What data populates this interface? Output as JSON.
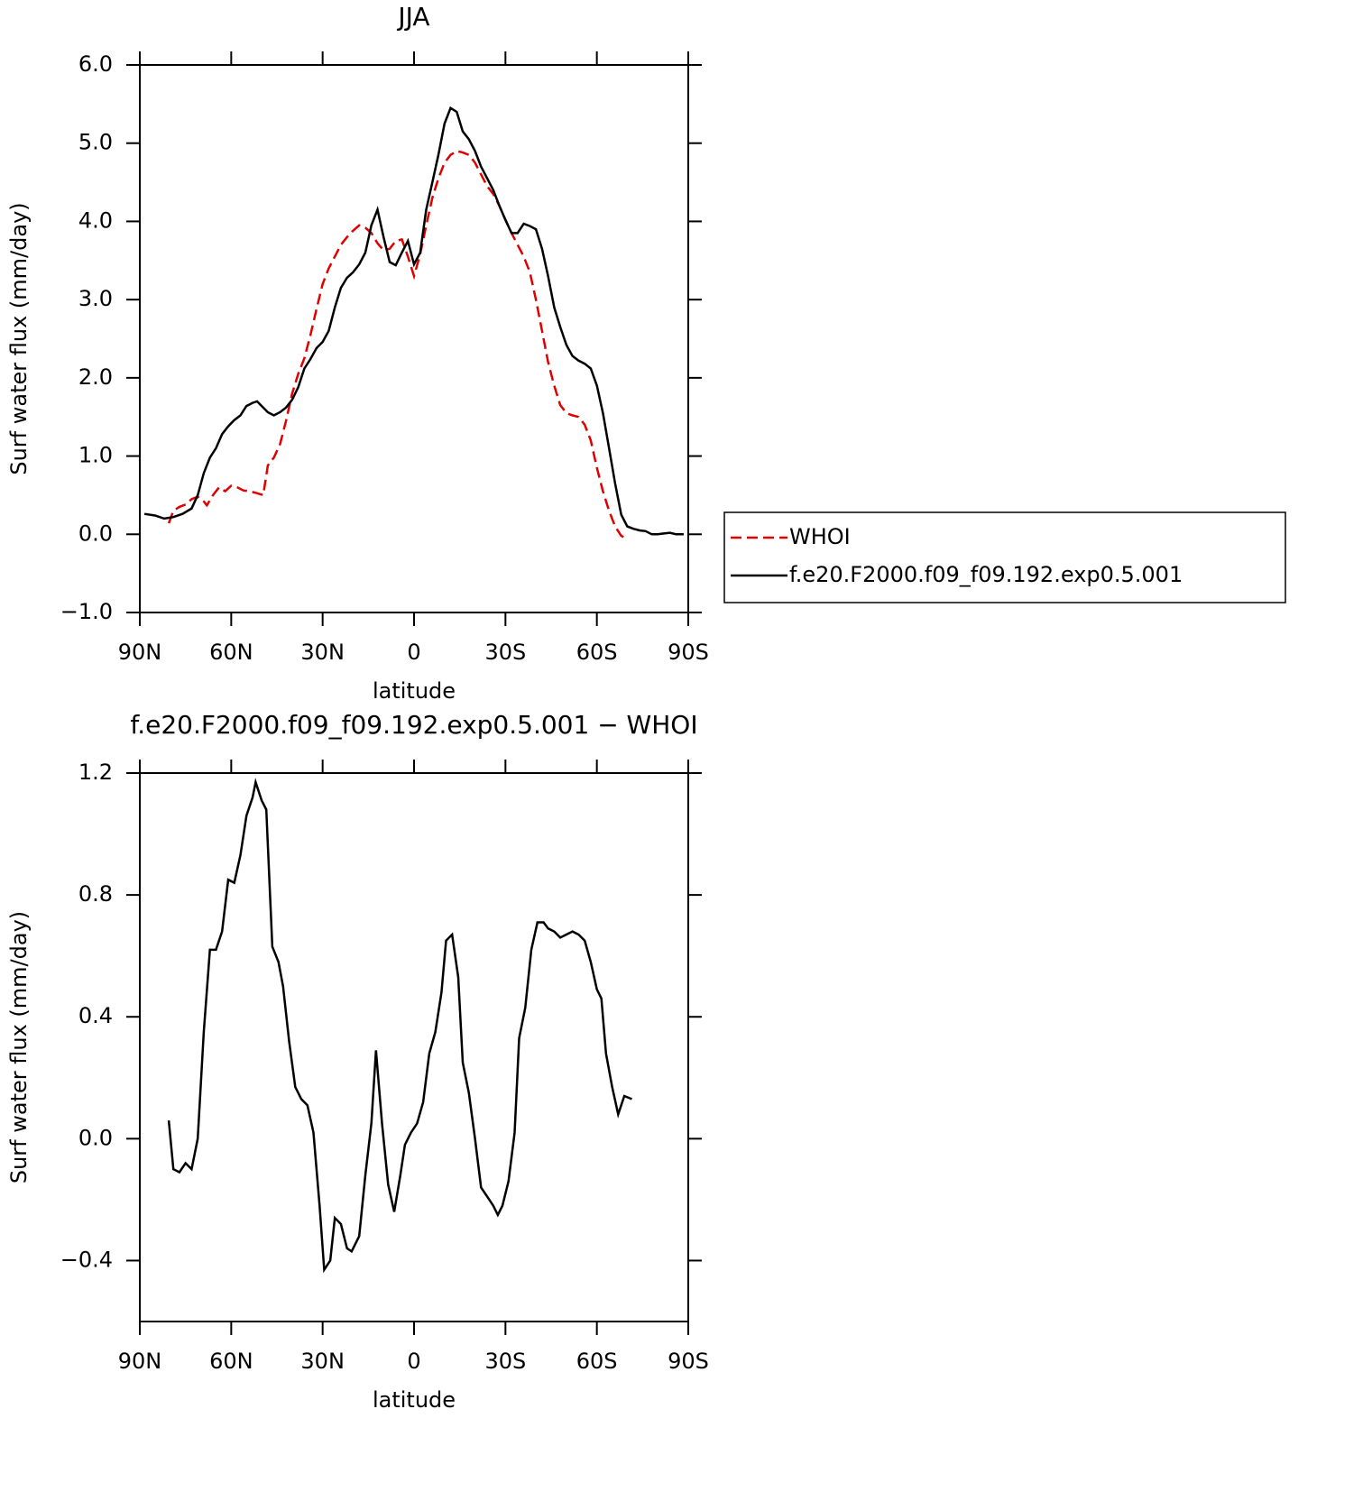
{
  "chart_data": [
    {
      "type": "line",
      "title": "JJA",
      "xlabel": "latitude",
      "ylabel": "Surf water flux (mm/day)",
      "xlim": [
        90,
        -90
      ],
      "ylim": [
        -1,
        6
      ],
      "xticks": [
        {
          "value": 90,
          "label": "90N"
        },
        {
          "value": 60,
          "label": "60N"
        },
        {
          "value": 30,
          "label": "30N"
        },
        0,
        {
          "value": -30,
          "label": "30S"
        },
        {
          "value": -60,
          "label": "60S"
        },
        {
          "value": -90,
          "label": "90S"
        }
      ],
      "yticks": [
        {
          "value": 6,
          "label": "6.0"
        },
        {
          "value": 5,
          "label": "5.0"
        },
        {
          "value": 4,
          "label": "4.0"
        },
        {
          "value": 3,
          "label": "3.0"
        },
        {
          "value": 2,
          "label": "2.0"
        },
        {
          "value": 1,
          "label": "1.0"
        },
        {
          "value": 0,
          "label": "0.0"
        },
        {
          "value": -1,
          "label": "−1.0"
        }
      ],
      "legend": "right",
      "series": [
        {
          "name": "WHOI",
          "color": "#e00000",
          "dash": true,
          "x": [
            80.5,
            79,
            77,
            75,
            73,
            71,
            69,
            68,
            66,
            64,
            62,
            60,
            58,
            56,
            54,
            52,
            49.5,
            48,
            46,
            44,
            42,
            40,
            38,
            36,
            34,
            32,
            30,
            28,
            26,
            24,
            22,
            20,
            18,
            16,
            14,
            12,
            10,
            8,
            6,
            4,
            2,
            0,
            -2,
            -4,
            -6,
            -8,
            -10,
            -12,
            -14,
            -16,
            -18,
            -20,
            -22,
            -24,
            -26,
            -28,
            -30,
            -32,
            -34,
            -36,
            -38,
            -40,
            -42,
            -44,
            -46,
            -48,
            -50,
            -52,
            -54,
            -56,
            -58,
            -60,
            -62,
            -64,
            -66,
            -68,
            -70
          ],
          "values": [
            0.14,
            0.3,
            0.35,
            0.38,
            0.45,
            0.48,
            0.42,
            0.37,
            0.5,
            0.6,
            0.55,
            0.62,
            0.6,
            0.56,
            0.55,
            0.53,
            0.5,
            0.88,
            0.98,
            1.15,
            1.45,
            1.8,
            2.05,
            2.25,
            2.55,
            2.88,
            3.2,
            3.4,
            3.55,
            3.7,
            3.8,
            3.88,
            3.95,
            3.92,
            3.85,
            3.72,
            3.63,
            3.65,
            3.75,
            3.77,
            3.55,
            3.3,
            3.58,
            3.95,
            4.3,
            4.55,
            4.75,
            4.85,
            4.9,
            4.88,
            4.85,
            4.75,
            4.6,
            4.45,
            4.35,
            4.2,
            4.02,
            3.85,
            3.7,
            3.55,
            3.35,
            3.0,
            2.6,
            2.2,
            1.9,
            1.65,
            1.55,
            1.52,
            1.5,
            1.4,
            1.2,
            0.85,
            0.55,
            0.3,
            0.1,
            -0.02,
            -0.06
          ]
        },
        {
          "name": "f.e20.F2000.f09_f09.192.exp0.5.001",
          "color": "#000000",
          "dash": false,
          "x": [
            88.5,
            85,
            82,
            79,
            76,
            73,
            71,
            69,
            67,
            65,
            63,
            61,
            59,
            57,
            55,
            53,
            51.5,
            50,
            48,
            46,
            44,
            42,
            40,
            38,
            36,
            34,
            32,
            30,
            28,
            26,
            24,
            22,
            20,
            18,
            16,
            14,
            12,
            10,
            8,
            6,
            4,
            2,
            0,
            -2,
            -4,
            -6,
            -8,
            -10,
            -12,
            -14,
            -16,
            -18,
            -20,
            -22,
            -24,
            -26,
            -28,
            -30,
            -32,
            -34,
            -36,
            -38,
            -40,
            -42,
            -44,
            -46,
            -48,
            -50,
            -52,
            -54,
            -56,
            -58,
            -60,
            -62,
            -64,
            -66,
            -68,
            -70,
            -72,
            -74,
            -76,
            -78,
            -80,
            -82,
            -84,
            -86,
            -88.5
          ],
          "values": [
            0.26,
            0.24,
            0.2,
            0.22,
            0.26,
            0.33,
            0.5,
            0.78,
            0.98,
            1.1,
            1.28,
            1.38,
            1.46,
            1.52,
            1.64,
            1.68,
            1.7,
            1.64,
            1.56,
            1.52,
            1.56,
            1.62,
            1.72,
            1.88,
            2.12,
            2.24,
            2.38,
            2.46,
            2.6,
            2.9,
            3.15,
            3.28,
            3.35,
            3.45,
            3.6,
            3.95,
            4.15,
            3.8,
            3.48,
            3.44,
            3.6,
            3.75,
            3.45,
            3.6,
            4.15,
            4.5,
            4.85,
            5.25,
            5.45,
            5.4,
            5.15,
            5.05,
            4.9,
            4.7,
            4.55,
            4.4,
            4.2,
            4.02,
            3.85,
            3.85,
            3.97,
            3.94,
            3.9,
            3.65,
            3.3,
            2.9,
            2.65,
            2.42,
            2.28,
            2.22,
            2.18,
            2.12,
            1.9,
            1.55,
            1.1,
            0.65,
            0.25,
            0.1,
            0.07,
            0.05,
            0.04,
            0.0,
            0.0,
            0.01,
            0.02,
            0.0,
            0.0
          ]
        }
      ]
    },
    {
      "type": "line",
      "title": "f.e20.F2000.f09_f09.192.exp0.5.001 − WHOI",
      "xlabel": "latitude",
      "ylabel": "Surf water flux (mm/day)",
      "xlim": [
        90,
        -90
      ],
      "ylim": [
        -0.6,
        1.2
      ],
      "xticks": [
        {
          "value": 90,
          "label": "90N"
        },
        {
          "value": 60,
          "label": "60N"
        },
        {
          "value": 30,
          "label": "30N"
        },
        0,
        {
          "value": -30,
          "label": "30S"
        },
        {
          "value": -60,
          "label": "60S"
        },
        {
          "value": -90,
          "label": "90S"
        }
      ],
      "yticks": [
        1.2,
        0.8,
        0.4,
        {
          "value": 0,
          "label": "0.0"
        },
        {
          "value": -0.4,
          "label": "−0.4"
        }
      ],
      "series": [
        {
          "color": "#000000",
          "dash": false,
          "x": [
            80.5,
            79,
            77,
            75,
            73,
            71,
            69,
            67,
            65,
            63,
            61,
            59,
            57,
            55,
            53,
            52,
            50,
            48.5,
            46.5,
            44.5,
            43,
            41,
            39,
            37,
            35,
            33,
            31,
            29.5,
            27.5,
            26,
            24,
            22,
            20.5,
            18,
            16,
            14,
            12.5,
            10.5,
            8.5,
            6.5,
            4.5,
            3,
            1,
            -1,
            -3,
            -5,
            -7,
            -9,
            -10.5,
            -12.5,
            -14.5,
            -16,
            -18,
            -20,
            -22,
            -24,
            -26,
            -27.5,
            -29,
            -31,
            -33,
            -34.5,
            -36.5,
            -38.5,
            -40.5,
            -42.5,
            -44,
            -46,
            -48,
            -50,
            -52,
            -54,
            -56,
            -58,
            -60,
            -61.5,
            -63,
            -65,
            -67,
            -69,
            -71.5
          ],
          "values": [
            0.06,
            -0.1,
            -0.11,
            -0.08,
            -0.1,
            0.0,
            0.35,
            0.62,
            0.62,
            0.68,
            0.85,
            0.84,
            0.93,
            1.06,
            1.12,
            1.17,
            1.11,
            1.08,
            0.63,
            0.58,
            0.5,
            0.32,
            0.17,
            0.13,
            0.11,
            0.02,
            -0.22,
            -0.43,
            -0.4,
            -0.26,
            -0.28,
            -0.36,
            -0.37,
            -0.32,
            -0.12,
            0.05,
            0.29,
            0.05,
            -0.15,
            -0.24,
            -0.12,
            -0.02,
            0.02,
            0.05,
            0.12,
            0.28,
            0.35,
            0.48,
            0.65,
            0.67,
            0.53,
            0.25,
            0.15,
            0.0,
            -0.16,
            -0.19,
            -0.22,
            -0.25,
            -0.22,
            -0.14,
            0.02,
            0.33,
            0.43,
            0.62,
            0.71,
            0.71,
            0.69,
            0.68,
            0.66,
            0.67,
            0.68,
            0.67,
            0.65,
            0.58,
            0.49,
            0.46,
            0.28,
            0.17,
            0.08,
            0.14,
            0.13
          ]
        }
      ]
    }
  ]
}
